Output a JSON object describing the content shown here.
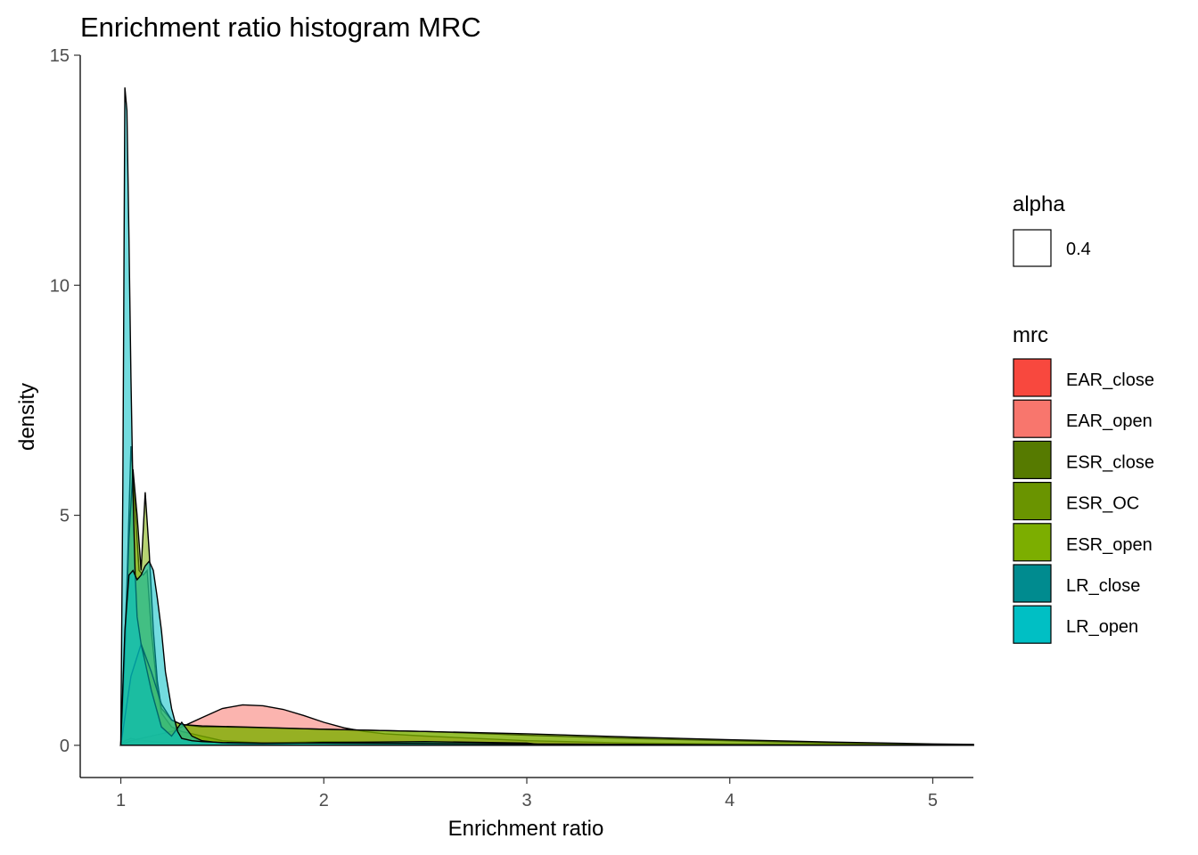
{
  "chart_data": {
    "type": "area",
    "title": "Enrichment ratio histogram MRC",
    "xlabel": "Enrichment ratio",
    "ylabel": "density",
    "xlim": [
      0.8,
      5.2
    ],
    "ylim": [
      -0.7,
      15.0
    ],
    "xticks": [
      1,
      2,
      3,
      4,
      5
    ],
    "yticks": [
      0,
      5,
      10,
      15
    ],
    "grid": false,
    "legend_position": "right",
    "alpha_legend": {
      "title": "alpha",
      "label": "0.4"
    },
    "fill_legend_title": "mrc",
    "series": [
      {
        "name": "EAR_close",
        "color": "#F8766D",
        "x": [
          1.0,
          1.02,
          1.05,
          1.08,
          1.12,
          1.16,
          1.2,
          1.25,
          1.3,
          1.35,
          1.4,
          1.5,
          1.6,
          1.7,
          1.8,
          1.9,
          2.0,
          2.1,
          2.2,
          2.3,
          2.5,
          3.0,
          3.5,
          4.0,
          4.5,
          5.0,
          5.2
        ],
        "y": [
          0.0,
          0.1,
          0.15,
          0.12,
          0.1,
          0.08,
          0.06,
          0.05,
          0.05,
          0.04,
          0.04,
          0.03,
          0.03,
          0.03,
          0.03,
          0.02,
          0.02,
          0.02,
          0.02,
          0.02,
          0.02,
          0.01,
          0.01,
          0.01,
          0.0,
          0.0,
          0.0
        ]
      },
      {
        "name": "EAR_open",
        "color": "#F8766D",
        "x": [
          1.0,
          1.05,
          1.1,
          1.15,
          1.2,
          1.25,
          1.3,
          1.4,
          1.5,
          1.6,
          1.7,
          1.8,
          1.9,
          2.0,
          2.1,
          2.2,
          2.3,
          2.5,
          3.0,
          3.5,
          4.0,
          4.5,
          5.0,
          5.2
        ],
        "y": [
          0.0,
          0.1,
          0.15,
          0.2,
          0.25,
          0.3,
          0.4,
          0.6,
          0.8,
          0.88,
          0.86,
          0.78,
          0.65,
          0.5,
          0.38,
          0.3,
          0.25,
          0.2,
          0.1,
          0.05,
          0.03,
          0.02,
          0.01,
          0.01
        ]
      },
      {
        "name": "ESR_close",
        "color": "#7CAE00",
        "x": [
          1.0,
          1.03,
          1.05,
          1.07,
          1.09,
          1.11,
          1.13,
          1.15,
          1.18,
          1.2,
          1.25,
          1.3,
          1.4,
          1.5,
          1.7,
          2.0,
          2.5,
          3.0,
          3.1,
          3.2,
          3.5,
          4.0,
          4.5,
          5.2
        ],
        "y": [
          0.0,
          3.5,
          6.5,
          5.2,
          3.8,
          3.7,
          3.8,
          2.5,
          1.2,
          0.7,
          0.4,
          0.3,
          0.2,
          0.1,
          0.05,
          0.08,
          0.05,
          0.03,
          0.0,
          0.0,
          0.0,
          0.0,
          0.0,
          0.0
        ]
      },
      {
        "name": "ESR_OC",
        "color": "#7CAE00",
        "x": [
          1.0,
          1.02,
          1.04,
          1.06,
          1.08,
          1.1,
          1.12,
          1.14,
          1.16,
          1.18,
          1.2,
          1.25,
          1.3,
          1.4,
          1.5,
          1.7,
          2.0,
          2.5,
          3.0,
          3.5,
          4.0,
          4.5,
          5.0,
          5.2
        ],
        "y": [
          0.0,
          2.0,
          4.5,
          6.0,
          5.0,
          3.8,
          5.5,
          4.2,
          2.5,
          1.4,
          0.8,
          0.55,
          0.45,
          0.4,
          0.4,
          0.38,
          0.35,
          0.3,
          0.22,
          0.15,
          0.1,
          0.05,
          0.02,
          0.01
        ]
      },
      {
        "name": "ESR_open",
        "color": "#7CAE00",
        "x": [
          1.0,
          1.05,
          1.1,
          1.15,
          1.2,
          1.25,
          1.3,
          1.4,
          1.6,
          2.0,
          2.5,
          3.0,
          3.5,
          4.0,
          4.5,
          5.0,
          5.2
        ],
        "y": [
          0.0,
          1.5,
          2.2,
          1.6,
          0.9,
          0.55,
          0.45,
          0.42,
          0.4,
          0.35,
          0.3,
          0.25,
          0.18,
          0.12,
          0.07,
          0.03,
          0.02
        ]
      },
      {
        "name": "LR_close",
        "color": "#00BFC4",
        "x": [
          1.0,
          1.01,
          1.02,
          1.03,
          1.04,
          1.05,
          1.06,
          1.07,
          1.08,
          1.1,
          1.12,
          1.15,
          1.2,
          1.25,
          1.3,
          1.35,
          1.4,
          1.5,
          1.7,
          2.0,
          2.5,
          3.0,
          3.1,
          3.2,
          3.5,
          4.0,
          5.2
        ],
        "y": [
          0.0,
          5.6,
          14.3,
          13.8,
          11.0,
          8.0,
          5.5,
          3.8,
          2.8,
          2.2,
          1.8,
          1.2,
          0.4,
          0.2,
          0.5,
          0.2,
          0.1,
          0.05,
          0.03,
          0.06,
          0.08,
          0.05,
          0.0,
          0.0,
          0.0,
          0.0,
          0.0
        ]
      },
      {
        "name": "LR_open",
        "color": "#00BFC4",
        "x": [
          1.0,
          1.02,
          1.04,
          1.06,
          1.08,
          1.1,
          1.12,
          1.14,
          1.16,
          1.18,
          1.2,
          1.22,
          1.25,
          1.28,
          1.3,
          1.35,
          1.4,
          1.5,
          1.7,
          2.0,
          2.5,
          3.0,
          3.5,
          4.0,
          4.5,
          5.2
        ],
        "y": [
          0.0,
          2.5,
          3.7,
          3.8,
          3.6,
          3.7,
          3.9,
          4.0,
          3.8,
          3.2,
          2.5,
          1.6,
          0.8,
          0.3,
          0.15,
          0.1,
          0.08,
          0.06,
          0.05,
          0.05,
          0.04,
          0.03,
          0.02,
          0.01,
          0.0,
          0.0
        ]
      }
    ],
    "legend_swatches": [
      {
        "label": "EAR_close",
        "color": "#F8483E"
      },
      {
        "label": "EAR_open",
        "color": "#F8766D"
      },
      {
        "label": "ESR_close",
        "color": "#567A00"
      },
      {
        "label": "ESR_OC",
        "color": "#6A9400"
      },
      {
        "label": "ESR_open",
        "color": "#7CAE00"
      },
      {
        "label": "LR_close",
        "color": "#008B8F"
      },
      {
        "label": "LR_open",
        "color": "#00BFC4"
      }
    ]
  }
}
